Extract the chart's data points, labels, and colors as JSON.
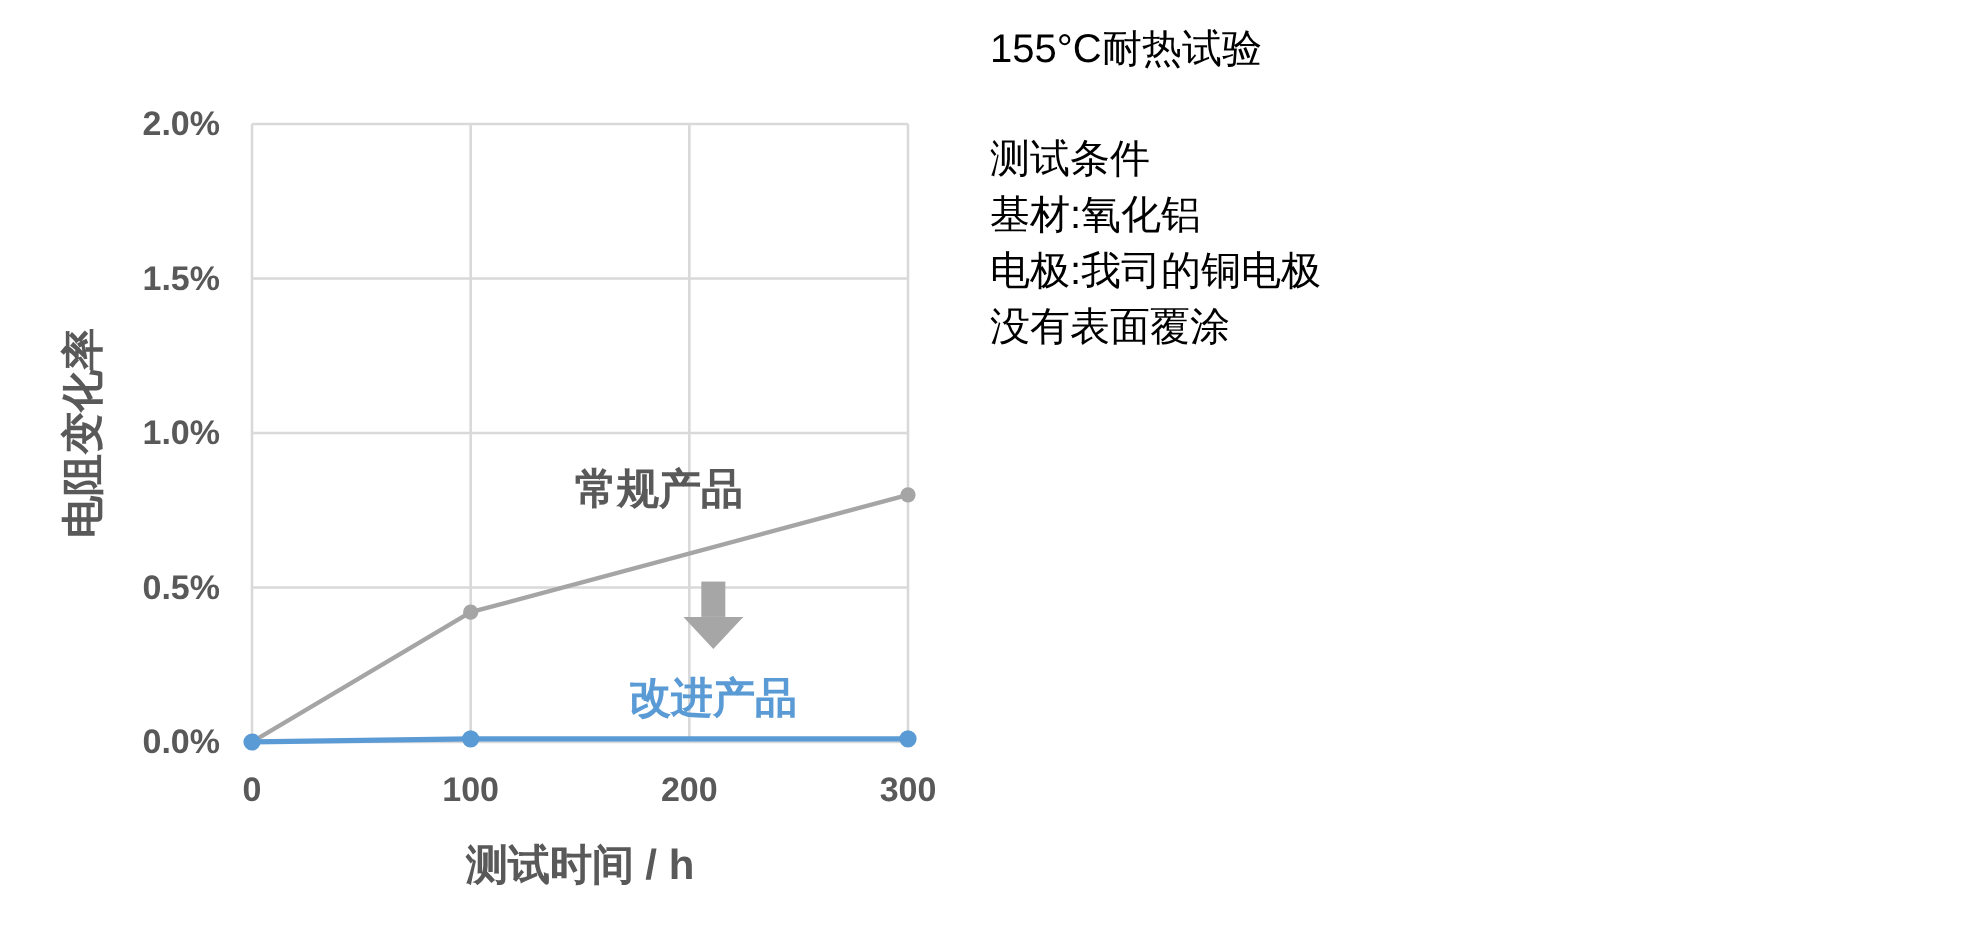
{
  "chart_data": {
    "type": "line",
    "title": "155°C耐热试验",
    "annotations": [
      "测试条件",
      "基材:氧化铝",
      "电极:我司的铜电极",
      "没有表面覆涂"
    ],
    "xlabel": "测试时间 / h",
    "ylabel": "电阻变化率",
    "xlim": [
      0,
      300
    ],
    "xticks": [
      0,
      100,
      200,
      300
    ],
    "ylim": [
      0,
      2
    ],
    "yticks": [
      {
        "value": 0,
        "label": "0.0%"
      },
      {
        "value": 0.5,
        "label": "0.5%"
      },
      {
        "value": 1,
        "label": "1.0%"
      },
      {
        "value": 1.5,
        "label": "1.5%"
      },
      {
        "value": 2,
        "label": "2.0%"
      }
    ],
    "series": [
      {
        "name": "常规产品",
        "color": "#a5a5a5",
        "x": [
          0,
          100,
          300
        ],
        "values": [
          0,
          0.42,
          0.8
        ]
      },
      {
        "name": "改进产品",
        "color": "#5b9bd5",
        "x": [
          0,
          100,
          300
        ],
        "values": [
          0,
          0.01,
          0.01
        ]
      }
    ],
    "marker": "circle",
    "grid": true
  }
}
